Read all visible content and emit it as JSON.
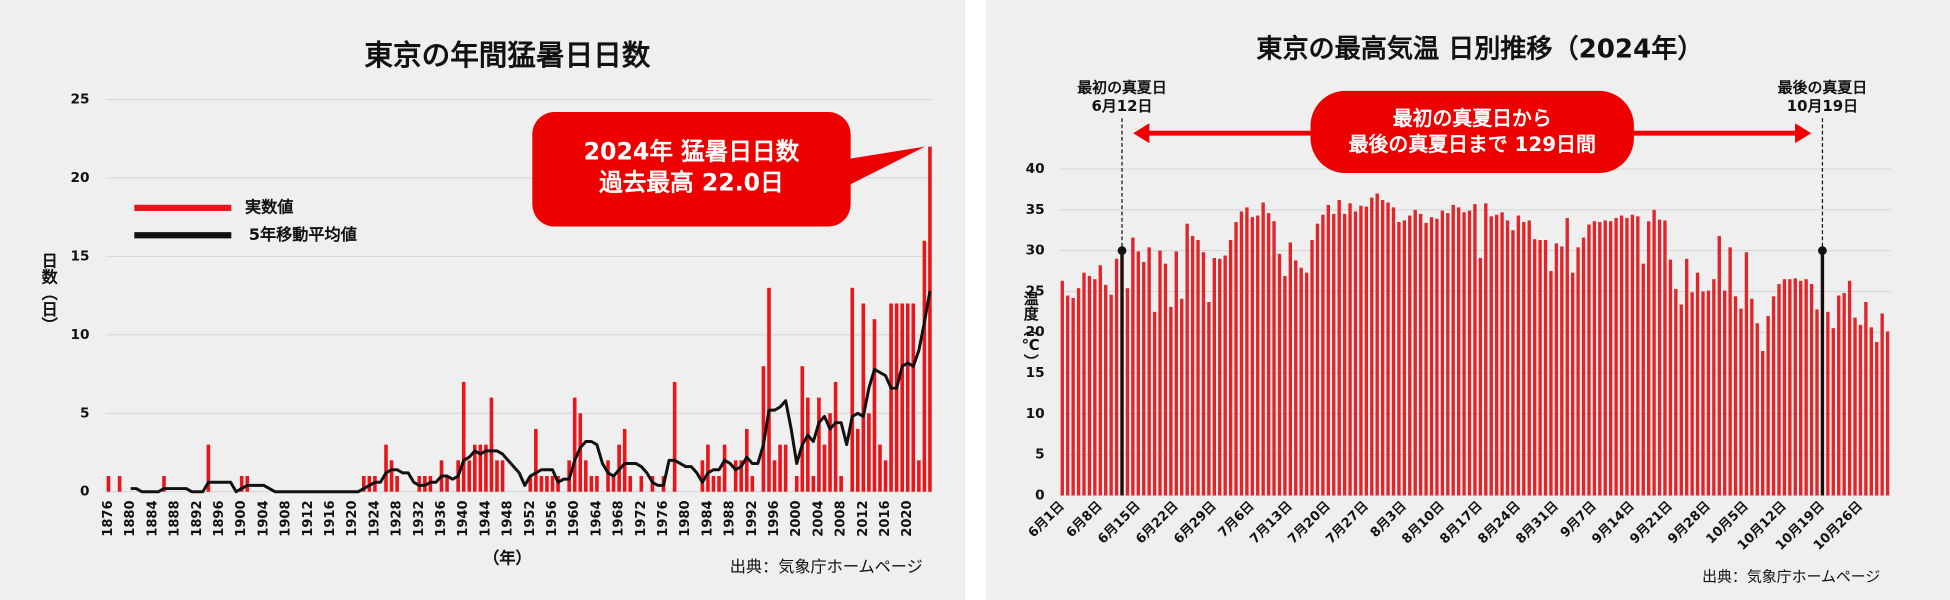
{
  "chart_data": [
    {
      "type": "bar",
      "title": "東京の年間猛暑日日数",
      "categories": [
        "1876",
        null,
        null,
        null,
        "1880",
        null,
        null,
        null,
        "1884",
        null,
        null,
        null,
        "1888",
        null,
        null,
        null,
        "1892",
        null,
        null,
        null,
        "1896",
        null,
        null,
        null,
        "1900",
        null,
        null,
        null,
        "1904",
        null,
        null,
        null,
        "1908",
        null,
        null,
        null,
        "1912",
        null,
        null,
        null,
        "1916",
        null,
        null,
        null,
        "1920",
        null,
        null,
        null,
        "1924",
        null,
        null,
        null,
        "1928",
        null,
        null,
        null,
        "1932",
        null,
        null,
        null,
        "1936",
        null,
        null,
        null,
        "1940",
        null,
        null,
        null,
        "1944",
        null,
        null,
        null,
        "1948",
        null,
        null,
        null,
        "1952",
        null,
        null,
        null,
        "1956",
        null,
        null,
        null,
        "1960",
        null,
        null,
        null,
        "1964",
        null,
        null,
        null,
        "1968",
        null,
        null,
        null,
        "1972",
        null,
        null,
        null,
        "1976",
        null,
        null,
        null,
        "1980",
        null,
        null,
        null,
        "1984",
        null,
        null,
        null,
        "1988",
        null,
        null,
        null,
        "1992",
        null,
        null,
        null,
        "1996",
        null,
        null,
        null,
        "2000",
        null,
        null,
        null,
        "2004",
        null,
        null,
        null,
        "2008",
        null,
        null,
        null,
        "2012",
        null,
        null,
        null,
        "2016",
        null,
        null,
        null,
        "2020",
        null,
        null,
        null,
        null
      ],
      "series": [
        {
          "name": "実数値",
          "type": "bar",
          "color": "#e8161b",
          "values": [
            1,
            0,
            1,
            0,
            0,
            0,
            0,
            0,
            0,
            0,
            1,
            0,
            0,
            0,
            0,
            0,
            0,
            0,
            3,
            0,
            0,
            0,
            0,
            0,
            1,
            1,
            0,
            0,
            0,
            0,
            0,
            0,
            0,
            0,
            0,
            0,
            0,
            0,
            0,
            0,
            0,
            0,
            0,
            0,
            0,
            0,
            1,
            1,
            1,
            0,
            3,
            2,
            1,
            0,
            0,
            0,
            1,
            1,
            1,
            0,
            2,
            1,
            0,
            2,
            7,
            2,
            3,
            3,
            3,
            6,
            2,
            2,
            0,
            0,
            0,
            0,
            1,
            4,
            1,
            1,
            1,
            1,
            0,
            2,
            6,
            5,
            2,
            1,
            1,
            0,
            2,
            1,
            3,
            4,
            1,
            0,
            1,
            0,
            1,
            0,
            1,
            0,
            7,
            0,
            0,
            0,
            0,
            2,
            3,
            1,
            1,
            3,
            0,
            2,
            2,
            4,
            1,
            0,
            8,
            13,
            2,
            3,
            3,
            0,
            1,
            8,
            6,
            1,
            6,
            3,
            5,
            7,
            1,
            0,
            13,
            4,
            12,
            5,
            11,
            3,
            2,
            12,
            12,
            12,
            12,
            12,
            2,
            16,
            22
          ]
        },
        {
          "name": "5年移動平均値",
          "type": "line",
          "color": "#111111",
          "values": [
            null,
            null,
            null,
            null,
            0.2,
            0.2,
            0,
            0,
            0,
            0,
            0.2,
            0.2,
            0.2,
            0.2,
            0.2,
            0,
            0,
            0,
            0.6,
            0.6,
            0.6,
            0.6,
            0.6,
            0,
            0.2,
            0.4,
            0.4,
            0.4,
            0.4,
            0.2,
            0,
            0,
            0,
            0,
            0,
            0,
            0,
            0,
            0,
            0,
            0,
            0,
            0,
            0,
            0,
            0,
            0.2,
            0.4,
            0.6,
            0.6,
            1.2,
            1.4,
            1.4,
            1.2,
            1.2,
            0.6,
            0.4,
            0.4,
            0.6,
            0.6,
            1.0,
            1.0,
            0.8,
            1.0,
            2.0,
            2.2,
            2.6,
            2.4,
            2.6,
            2.6,
            2.6,
            2.4,
            2.0,
            1.6,
            1.2,
            0.4,
            1.0,
            1.2,
            1.4,
            1.4,
            1.4,
            0.6,
            0.8,
            0.8,
            2.0,
            2.8,
            3.2,
            3.2,
            3.0,
            1.8,
            1.2,
            1.0,
            1.4,
            1.8,
            1.8,
            1.8,
            1.6,
            1.2,
            0.6,
            0.4,
            0.4,
            2.0,
            2.0,
            1.8,
            1.6,
            1.6,
            1.2,
            0.6,
            1.2,
            1.4,
            1.4,
            2.0,
            1.8,
            1.4,
            1.6,
            2.2,
            1.8,
            1.8,
            3.0,
            5.2,
            5.2,
            5.4,
            5.8,
            4.0,
            1.8,
            3.0,
            3.6,
            3.2,
            4.4,
            4.8,
            4.0,
            4.4,
            4.4,
            3.0,
            4.8,
            5.0,
            4.8,
            6.6,
            7.8,
            7.6,
            7.4,
            6.6,
            6.6,
            8.0,
            8.2,
            8.0,
            9.0,
            10.8,
            12.8
          ]
        }
      ],
      "ylim": [
        0,
        25
      ],
      "yticks": [
        0,
        5,
        10,
        15,
        20,
        25
      ],
      "grid": true,
      "legend": "left",
      "ylabel": "日数（日）",
      "xlabel": "（年）",
      "annotation": {
        "lines": [
          "2024年 猛暑日日数",
          "過去最高 22.0日"
        ],
        "color": "#ee0000"
      },
      "source": "出典：気象庁ホームページ"
    },
    {
      "type": "bar",
      "title": "東京の最高気温 日別推移（2024年）",
      "categories": [
        "6月1日",
        null,
        null,
        null,
        null,
        null,
        null,
        "6月8日",
        null,
        null,
        null,
        null,
        null,
        null,
        "6月15日",
        null,
        null,
        null,
        null,
        null,
        null,
        "6月22日",
        null,
        null,
        null,
        null,
        null,
        null,
        "6月29日",
        null,
        null,
        null,
        null,
        null,
        null,
        "7月6日",
        null,
        null,
        null,
        null,
        null,
        null,
        "7月13日",
        null,
        null,
        null,
        null,
        null,
        null,
        "7月20日",
        null,
        null,
        null,
        null,
        null,
        null,
        "7月27日",
        null,
        null,
        null,
        null,
        null,
        null,
        "8月3日",
        null,
        null,
        null,
        null,
        null,
        null,
        "8月10日",
        null,
        null,
        null,
        null,
        null,
        null,
        "8月17日",
        null,
        null,
        null,
        null,
        null,
        null,
        "8月24日",
        null,
        null,
        null,
        null,
        null,
        null,
        "8月31日",
        null,
        null,
        null,
        null,
        null,
        null,
        "9月7日",
        null,
        null,
        null,
        null,
        null,
        null,
        "9月14日",
        null,
        null,
        null,
        null,
        null,
        null,
        "9月21日",
        null,
        null,
        null,
        null,
        null,
        null,
        "9月28日",
        null,
        null,
        null,
        null,
        null,
        null,
        "10月5日",
        null,
        null,
        null,
        null,
        null,
        null,
        "10月12日",
        null,
        null,
        null,
        null,
        null,
        null,
        "10月19日",
        null,
        null,
        null,
        null,
        null,
        null,
        "10月26日",
        null,
        null,
        null,
        null,
        null
      ],
      "values": [
        26.3,
        24.5,
        24.2,
        25.4,
        27.3,
        26.9,
        26.5,
        28.2,
        25.8,
        24.6,
        29.0,
        30.1,
        25.4,
        31.6,
        29.9,
        28.6,
        30.4,
        22.5,
        30.0,
        28.4,
        23.1,
        29.9,
        24.1,
        33.3,
        31.8,
        31.3,
        29.8,
        23.7,
        29.1,
        29.0,
        29.4,
        31.3,
        33.5,
        34.8,
        35.3,
        34.1,
        34.3,
        35.9,
        34.6,
        33.6,
        29.6,
        26.9,
        31.0,
        28.8,
        27.9,
        27.3,
        31.3,
        33.3,
        34.4,
        35.6,
        34.5,
        36.2,
        34.5,
        35.8,
        34.8,
        35.5,
        35.4,
        36.5,
        37.0,
        36.2,
        35.9,
        35.3,
        33.5,
        33.7,
        34.3,
        35.0,
        34.5,
        33.4,
        34.1,
        33.9,
        34.9,
        34.6,
        35.6,
        35.3,
        34.7,
        34.9,
        35.7,
        29.1,
        35.8,
        34.2,
        34.4,
        34.7,
        33.7,
        32.5,
        34.3,
        33.5,
        33.7,
        31.4,
        31.3,
        31.3,
        27.5,
        30.9,
        30.5,
        34.0,
        27.3,
        30.4,
        31.6,
        33.2,
        33.6,
        33.5,
        33.7,
        33.6,
        34.0,
        34.3,
        34.0,
        34.4,
        34.2,
        28.4,
        33.6,
        35.0,
        33.8,
        33.7,
        28.9,
        25.3,
        23.4,
        29.0,
        24.9,
        27.3,
        25.0,
        25.1,
        26.5,
        31.8,
        25.1,
        30.4,
        24.4,
        22.9,
        29.8,
        24.1,
        21.1,
        17.7,
        22.0,
        24.4,
        25.9,
        26.5,
        26.5,
        26.6,
        26.3,
        26.5,
        25.9,
        22.8,
        30.1,
        22.5,
        20.5,
        24.5,
        24.8,
        26.3,
        21.8,
        20.9,
        23.7,
        20.6,
        18.8,
        22.3,
        20.1
      ],
      "color": "#e0262b",
      "ylim": [
        0,
        45
      ],
      "yticks": [
        0,
        5,
        10,
        15,
        20,
        25,
        30,
        35,
        40
      ],
      "grid": true,
      "ylabel": "温度（℃）",
      "markers": [
        {
          "title": "最初の真夏日",
          "date": "6月12日",
          "value": 30
        },
        {
          "title": "最後の真夏日",
          "date": "10月19日",
          "value": 30
        }
      ],
      "span": {
        "lines": [
          "最初の真夏日から",
          "最後の真夏日まで 129日間"
        ],
        "color": "#ee0000"
      },
      "source": "出典：気象庁ホームページ"
    }
  ]
}
